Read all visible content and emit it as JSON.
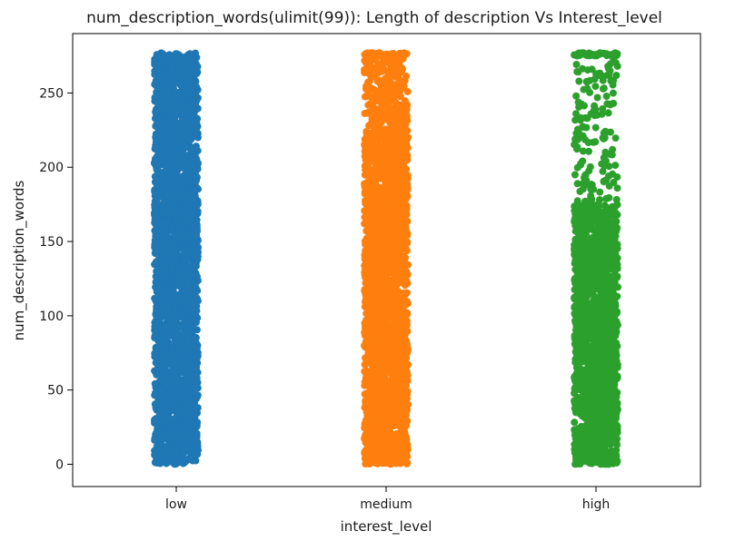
{
  "chart_data": {
    "type": "scatter",
    "title": "num_description_words(ulimit(99)): Length of description Vs Interest_level",
    "xlabel": "interest_level",
    "ylabel": "num_description_words",
    "categories": [
      "low",
      "medium",
      "high"
    ],
    "ylim": [
      -15,
      290
    ],
    "yticks": [
      0,
      50,
      100,
      150,
      200,
      250
    ],
    "grid": false,
    "series": [
      {
        "category": "low",
        "color": "#1f77b4",
        "min": 0,
        "max": 277,
        "density": "uniform-dense"
      },
      {
        "category": "medium",
        "color": "#ff7f0e",
        "min": 0,
        "max": 277,
        "density": "dense, sparser above 225"
      },
      {
        "category": "high",
        "color": "#2ca02c",
        "min": 0,
        "max": 277,
        "density": "dense below 175, sparse above"
      }
    ]
  }
}
